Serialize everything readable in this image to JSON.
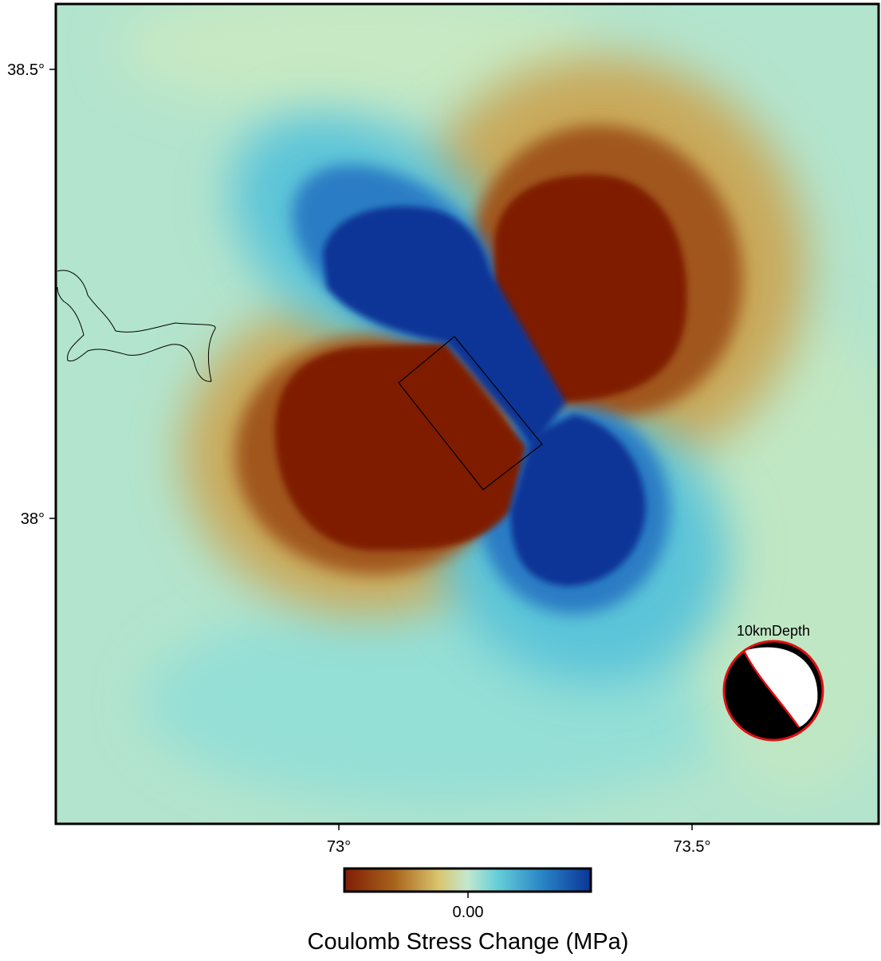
{
  "map": {
    "y_tick_labels": [
      "38.5°",
      "38°"
    ],
    "x_tick_labels": [
      "73°",
      "73.5°"
    ],
    "mechanism_label": "10kmDepth",
    "colorbar": {
      "tick_label": "0.00",
      "title": "Coulomb Stress Change (MPa)"
    }
  }
}
